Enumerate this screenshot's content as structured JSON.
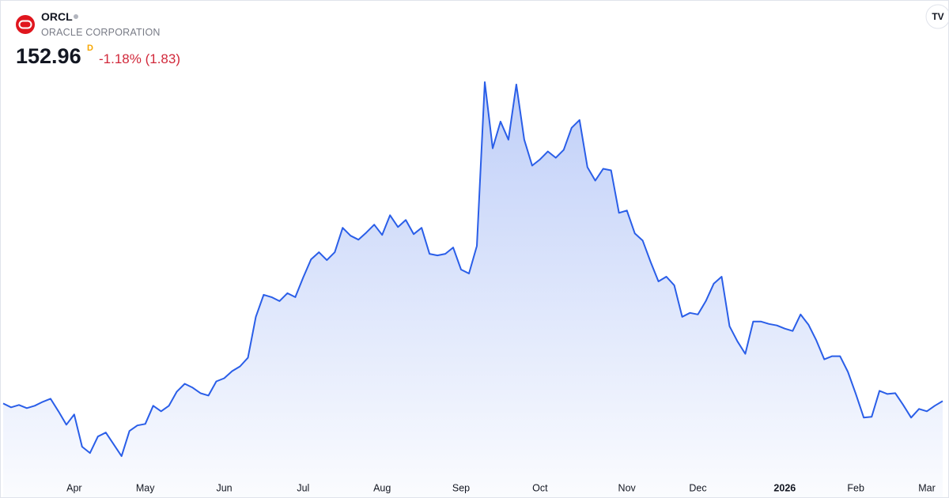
{
  "header": {
    "symbol": "ORCL",
    "name": "ORACLE CORPORATION",
    "price": "152.96",
    "interval": "D",
    "change": "-1.18% (1.83)"
  },
  "chart_data": {
    "type": "area",
    "categories": [
      null,
      null,
      null,
      null,
      null,
      null,
      null,
      null,
      null,
      "Apr",
      null,
      null,
      null,
      null,
      null,
      null,
      null,
      null,
      "May",
      null,
      null,
      null,
      null,
      null,
      null,
      null,
      null,
      null,
      "Jun",
      null,
      null,
      null,
      null,
      null,
      null,
      null,
      null,
      null,
      "Jul",
      null,
      null,
      null,
      null,
      null,
      null,
      null,
      null,
      null,
      "Aug",
      null,
      null,
      null,
      null,
      null,
      null,
      null,
      null,
      null,
      "Sep",
      null,
      null,
      null,
      null,
      null,
      null,
      null,
      null,
      null,
      "Oct",
      null,
      null,
      null,
      null,
      null,
      null,
      null,
      null,
      null,
      null,
      "Nov",
      null,
      null,
      null,
      null,
      null,
      null,
      null,
      null,
      "Dec",
      null,
      null,
      null,
      null,
      null,
      null,
      null,
      null,
      null,
      null,
      "2026",
      null,
      null,
      null,
      null,
      null,
      null,
      null,
      null,
      "Feb",
      null,
      null,
      null,
      null,
      null,
      null,
      null,
      null,
      "Mar",
      null,
      null
    ],
    "values": [
      151.5,
      149,
      150.5,
      148.5,
      150,
      152.5,
      154.5,
      146.5,
      138,
      144.5,
      124,
      120,
      130.5,
      133,
      125.5,
      118,
      134,
      137.5,
      138.5,
      150,
      146.5,
      150,
      159,
      164,
      161.5,
      158,
      156.5,
      165.5,
      167.5,
      172,
      175,
      180.5,
      206.5,
      220.5,
      219,
      216.5,
      221.5,
      219,
      231.5,
      243,
      247.5,
      242.5,
      247.5,
      263,
      258,
      255.5,
      260,
      265,
      258.5,
      271,
      263.5,
      268,
      259,
      263,
      246.5,
      245.5,
      246.5,
      250.5,
      236.5,
      234,
      251.5,
      355.5,
      313.5,
      330.5,
      319,
      354,
      319,
      302.5,
      306.5,
      311.5,
      307.5,
      312.5,
      326.5,
      331.5,
      301.5,
      293,
      300.5,
      299.5,
      272.5,
      274,
      259.5,
      255,
      241.5,
      229,
      232,
      226.5,
      206.5,
      209,
      208,
      216.5,
      227.5,
      232,
      200.5,
      191,
      183,
      203.5,
      203.5,
      202,
      201,
      199,
      197.5,
      208,
      201.5,
      191.5,
      179.5,
      181.5,
      181.5,
      171.5,
      157.5,
      142.5,
      143,
      159.5,
      157.5,
      158,
      150.5,
      142.5,
      148,
      146.5,
      150,
      152.96
    ],
    "color": "#2a5ee8",
    "ylim": [
      106,
      362
    ]
  }
}
